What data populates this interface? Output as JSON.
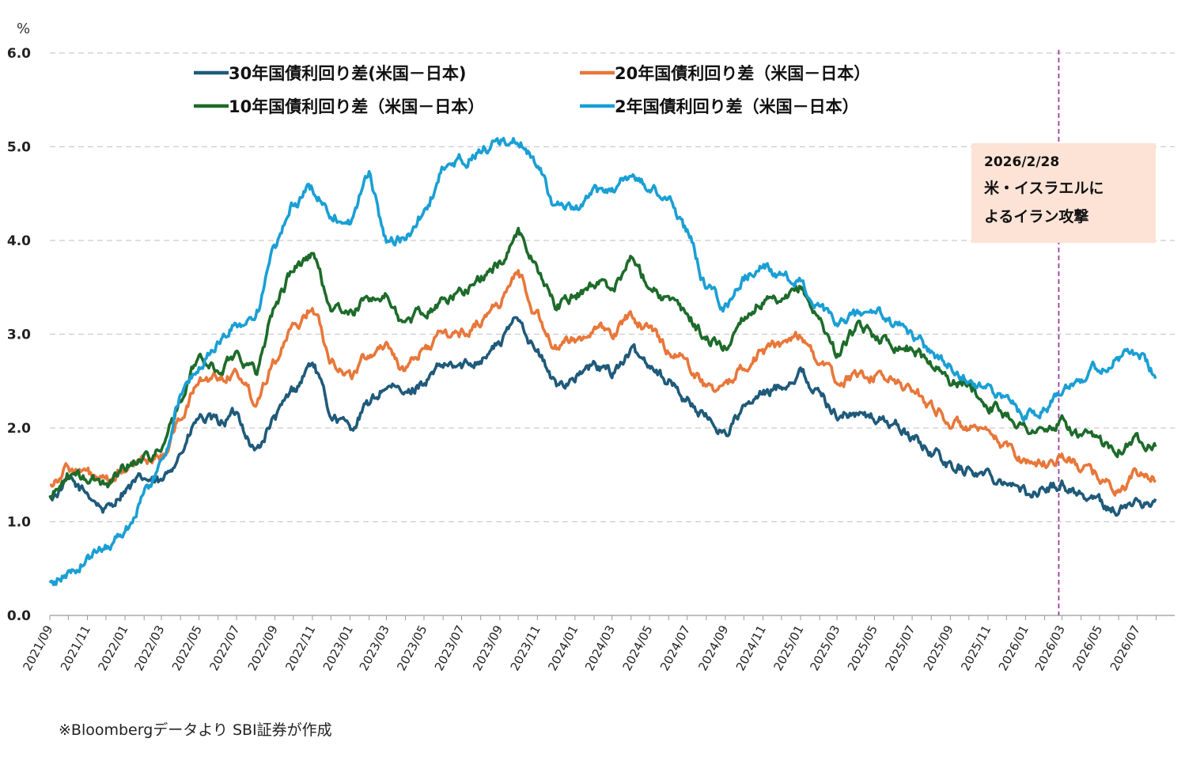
{
  "source_note": "※Bloombergデータより SBI証券が作成",
  "annotation": {
    "date": "2026/2/28",
    "lines": [
      "米・イスラエルに",
      "よるイラン攻撃"
    ],
    "event_x": "2026-03-01",
    "box_color": "#fce3d6",
    "line_color": "#9b3fa0"
  },
  "chart_data": {
    "type": "line",
    "y_unit": "%",
    "ylim": [
      0,
      6
    ],
    "yticks": [
      "0.0",
      "1.0",
      "2.0",
      "3.0",
      "4.0",
      "5.0",
      "6.0"
    ],
    "grid": "horizontal-dashed",
    "legend_position": "top-left",
    "x_tick_labels": [
      "2021/09",
      "2021/11",
      "2022/01",
      "2022/03",
      "2022/05",
      "2022/07",
      "2022/09",
      "2022/11",
      "2023/01",
      "2023/03",
      "2023/05",
      "2023/07",
      "2023/09",
      "2023/11",
      "2024/01",
      "2024/03",
      "2024/05",
      "2024/07",
      "2024/09",
      "2024/11",
      "2025/01",
      "2025/03",
      "2025/05",
      "2025/07",
      "2025/09",
      "2025/11",
      "2026/01",
      "2026/03",
      "2026/05",
      "2026/07"
    ],
    "x_start": "2021-09",
    "x_end": "2026-08-31",
    "series": [
      {
        "name": "30年国債利回り差(米国－日本)",
        "color": "#1f5a7a",
        "points": [
          [
            "2021-09",
            1.25
          ],
          [
            "2021-10",
            1.42
          ],
          [
            "2021-11",
            1.3
          ],
          [
            "2021-12",
            1.12
          ],
          [
            "2022-01",
            1.35
          ],
          [
            "2022-02",
            1.45
          ],
          [
            "2022-03",
            1.4
          ],
          [
            "2022-04",
            1.75
          ],
          [
            "2022-05",
            2.1
          ],
          [
            "2022-06",
            2.05
          ],
          [
            "2022-07",
            2.15
          ],
          [
            "2022-08",
            1.75
          ],
          [
            "2022-09",
            2.1
          ],
          [
            "2022-10",
            2.4
          ],
          [
            "2022-11",
            2.7
          ],
          [
            "2022-12",
            2.15
          ],
          [
            "2023-01",
            2.0
          ],
          [
            "2023-02",
            2.25
          ],
          [
            "2023-03",
            2.45
          ],
          [
            "2023-04",
            2.35
          ],
          [
            "2023-05",
            2.5
          ],
          [
            "2023-06",
            2.65
          ],
          [
            "2023-07",
            2.65
          ],
          [
            "2023-08",
            2.75
          ],
          [
            "2023-09",
            2.9
          ],
          [
            "2023-10",
            3.2
          ],
          [
            "2023-11",
            2.8
          ],
          [
            "2023-12",
            2.45
          ],
          [
            "2024-01",
            2.55
          ],
          [
            "2024-02",
            2.65
          ],
          [
            "2024-03",
            2.6
          ],
          [
            "2024-04",
            2.8
          ],
          [
            "2024-05",
            2.7
          ],
          [
            "2024-06",
            2.5
          ],
          [
            "2024-07",
            2.3
          ],
          [
            "2024-08",
            2.1
          ],
          [
            "2024-09",
            1.95
          ],
          [
            "2024-10",
            2.2
          ],
          [
            "2024-11",
            2.35
          ],
          [
            "2024-12",
            2.45
          ],
          [
            "2025-01",
            2.6
          ],
          [
            "2025-02",
            2.35
          ],
          [
            "2025-03",
            2.15
          ],
          [
            "2025-04",
            2.15
          ],
          [
            "2025-05",
            2.1
          ],
          [
            "2025-06",
            2.05
          ],
          [
            "2025-07",
            1.9
          ],
          [
            "2025-08",
            1.75
          ],
          [
            "2025-09",
            1.6
          ],
          [
            "2025-10",
            1.55
          ],
          [
            "2025-11",
            1.5
          ],
          [
            "2025-12",
            1.45
          ],
          [
            "2026-01",
            1.3
          ],
          [
            "2026-02",
            1.35
          ],
          [
            "2026-03",
            1.4
          ],
          [
            "2026-04",
            1.3
          ],
          [
            "2026-05",
            1.2
          ],
          [
            "2026-06",
            1.12
          ],
          [
            "2026-07",
            1.2
          ],
          [
            "2026-08",
            1.22
          ]
        ]
      },
      {
        "name": "20年国債利回り差（米国－日本）",
        "color": "#e8773a",
        "points": [
          [
            "2021-09",
            1.42
          ],
          [
            "2021-10",
            1.58
          ],
          [
            "2021-11",
            1.5
          ],
          [
            "2021-12",
            1.4
          ],
          [
            "2022-01",
            1.55
          ],
          [
            "2022-02",
            1.65
          ],
          [
            "2022-03",
            1.7
          ],
          [
            "2022-04",
            2.1
          ],
          [
            "2022-05",
            2.5
          ],
          [
            "2022-06",
            2.55
          ],
          [
            "2022-07",
            2.6
          ],
          [
            "2022-08",
            2.3
          ],
          [
            "2022-09",
            2.75
          ],
          [
            "2022-10",
            3.05
          ],
          [
            "2022-11",
            3.3
          ],
          [
            "2022-12",
            2.75
          ],
          [
            "2023-01",
            2.55
          ],
          [
            "2023-02",
            2.8
          ],
          [
            "2023-03",
            2.9
          ],
          [
            "2023-04",
            2.6
          ],
          [
            "2023-05",
            2.85
          ],
          [
            "2023-06",
            3.0
          ],
          [
            "2023-07",
            3.0
          ],
          [
            "2023-08",
            3.15
          ],
          [
            "2023-09",
            3.35
          ],
          [
            "2023-10",
            3.65
          ],
          [
            "2023-11",
            3.2
          ],
          [
            "2023-12",
            2.85
          ],
          [
            "2024-01",
            2.95
          ],
          [
            "2024-02",
            3.05
          ],
          [
            "2024-03",
            3.0
          ],
          [
            "2024-04",
            3.2
          ],
          [
            "2024-05",
            3.05
          ],
          [
            "2024-06",
            2.85
          ],
          [
            "2024-07",
            2.7
          ],
          [
            "2024-08",
            2.45
          ],
          [
            "2024-09",
            2.4
          ],
          [
            "2024-10",
            2.7
          ],
          [
            "2024-11",
            2.8
          ],
          [
            "2024-12",
            2.9
          ],
          [
            "2025-01",
            3.0
          ],
          [
            "2025-02",
            2.7
          ],
          [
            "2025-03",
            2.5
          ],
          [
            "2025-04",
            2.55
          ],
          [
            "2025-05",
            2.55
          ],
          [
            "2025-06",
            2.5
          ],
          [
            "2025-07",
            2.4
          ],
          [
            "2025-08",
            2.25
          ],
          [
            "2025-09",
            2.05
          ],
          [
            "2025-10",
            2.0
          ],
          [
            "2025-11",
            1.9
          ],
          [
            "2025-12",
            1.8
          ],
          [
            "2026-01",
            1.65
          ],
          [
            "2026-02",
            1.62
          ],
          [
            "2026-03",
            1.7
          ],
          [
            "2026-04",
            1.58
          ],
          [
            "2026-05",
            1.48
          ],
          [
            "2026-06",
            1.32
          ],
          [
            "2026-07",
            1.5
          ],
          [
            "2026-08",
            1.48
          ]
        ]
      },
      {
        "name": "10年国債利回り差（米国－日本）",
        "color": "#1d6b2a",
        "points": [
          [
            "2021-09",
            1.25
          ],
          [
            "2021-10",
            1.5
          ],
          [
            "2021-11",
            1.45
          ],
          [
            "2021-12",
            1.4
          ],
          [
            "2022-01",
            1.6
          ],
          [
            "2022-02",
            1.7
          ],
          [
            "2022-03",
            1.75
          ],
          [
            "2022-04",
            2.3
          ],
          [
            "2022-05",
            2.75
          ],
          [
            "2022-06",
            2.6
          ],
          [
            "2022-07",
            2.8
          ],
          [
            "2022-08",
            2.6
          ],
          [
            "2022-09",
            3.3
          ],
          [
            "2022-10",
            3.7
          ],
          [
            "2022-11",
            3.85
          ],
          [
            "2022-12",
            3.3
          ],
          [
            "2023-01",
            3.2
          ],
          [
            "2023-02",
            3.4
          ],
          [
            "2023-03",
            3.4
          ],
          [
            "2023-04",
            3.1
          ],
          [
            "2023-05",
            3.25
          ],
          [
            "2023-06",
            3.35
          ],
          [
            "2023-07",
            3.45
          ],
          [
            "2023-08",
            3.6
          ],
          [
            "2023-09",
            3.75
          ],
          [
            "2023-10",
            4.1
          ],
          [
            "2023-11",
            3.7
          ],
          [
            "2023-12",
            3.3
          ],
          [
            "2024-01",
            3.4
          ],
          [
            "2024-02",
            3.55
          ],
          [
            "2024-03",
            3.5
          ],
          [
            "2024-04",
            3.8
          ],
          [
            "2024-05",
            3.55
          ],
          [
            "2024-06",
            3.35
          ],
          [
            "2024-07",
            3.2
          ],
          [
            "2024-08",
            2.95
          ],
          [
            "2024-09",
            2.85
          ],
          [
            "2024-10",
            3.2
          ],
          [
            "2024-11",
            3.35
          ],
          [
            "2024-12",
            3.3
          ],
          [
            "2025-01",
            3.5
          ],
          [
            "2025-02",
            3.15
          ],
          [
            "2025-03",
            2.8
          ],
          [
            "2025-04",
            3.05
          ],
          [
            "2025-05",
            3.0
          ],
          [
            "2025-06",
            2.9
          ],
          [
            "2025-07",
            2.85
          ],
          [
            "2025-08",
            2.7
          ],
          [
            "2025-09",
            2.5
          ],
          [
            "2025-10",
            2.45
          ],
          [
            "2025-11",
            2.25
          ],
          [
            "2025-12",
            2.15
          ],
          [
            "2026-01",
            2.0
          ],
          [
            "2026-02",
            1.95
          ],
          [
            "2026-03",
            2.05
          ],
          [
            "2026-04",
            1.9
          ],
          [
            "2026-05",
            1.85
          ],
          [
            "2026-06",
            1.8
          ],
          [
            "2026-07",
            1.88
          ],
          [
            "2026-08",
            1.85
          ]
        ]
      },
      {
        "name": "2年国債利回り差（米国－日本）",
        "color": "#1a9fd4",
        "points": [
          [
            "2021-09",
            0.32
          ],
          [
            "2021-10",
            0.45
          ],
          [
            "2021-11",
            0.6
          ],
          [
            "2021-12",
            0.75
          ],
          [
            "2022-01",
            0.9
          ],
          [
            "2022-02",
            1.3
          ],
          [
            "2022-03",
            1.6
          ],
          [
            "2022-04",
            2.35
          ],
          [
            "2022-05",
            2.65
          ],
          [
            "2022-06",
            2.9
          ],
          [
            "2022-07",
            3.1
          ],
          [
            "2022-08",
            3.2
          ],
          [
            "2022-09",
            3.9
          ],
          [
            "2022-10",
            4.4
          ],
          [
            "2022-11",
            4.55
          ],
          [
            "2022-12",
            4.3
          ],
          [
            "2023-01",
            4.2
          ],
          [
            "2023-02",
            4.7
          ],
          [
            "2023-03",
            4.0
          ],
          [
            "2023-04",
            4.0
          ],
          [
            "2023-05",
            4.3
          ],
          [
            "2023-06",
            4.75
          ],
          [
            "2023-07",
            4.85
          ],
          [
            "2023-08",
            4.95
          ],
          [
            "2023-09",
            5.05
          ],
          [
            "2023-10",
            5.05
          ],
          [
            "2023-11",
            4.85
          ],
          [
            "2023-12",
            4.35
          ],
          [
            "2024-01",
            4.3
          ],
          [
            "2024-02",
            4.5
          ],
          [
            "2024-03",
            4.55
          ],
          [
            "2024-04",
            4.7
          ],
          [
            "2024-05",
            4.55
          ],
          [
            "2024-06",
            4.45
          ],
          [
            "2024-07",
            4.1
          ],
          [
            "2024-08",
            3.5
          ],
          [
            "2024-09",
            3.3
          ],
          [
            "2024-10",
            3.6
          ],
          [
            "2024-11",
            3.75
          ],
          [
            "2024-12",
            3.6
          ],
          [
            "2025-01",
            3.55
          ],
          [
            "2025-02",
            3.25
          ],
          [
            "2025-03",
            3.1
          ],
          [
            "2025-04",
            3.2
          ],
          [
            "2025-05",
            3.25
          ],
          [
            "2025-06",
            3.1
          ],
          [
            "2025-07",
            3.0
          ],
          [
            "2025-08",
            2.8
          ],
          [
            "2025-09",
            2.65
          ],
          [
            "2025-10",
            2.55
          ],
          [
            "2025-11",
            2.4
          ],
          [
            "2025-12",
            2.3
          ],
          [
            "2026-01",
            2.15
          ],
          [
            "2026-02",
            2.2
          ],
          [
            "2026-03",
            2.45
          ],
          [
            "2026-04",
            2.55
          ],
          [
            "2026-05",
            2.65
          ],
          [
            "2026-06",
            2.75
          ],
          [
            "2026-07",
            2.8
          ],
          [
            "2026-08",
            2.55
          ]
        ]
      }
    ]
  }
}
